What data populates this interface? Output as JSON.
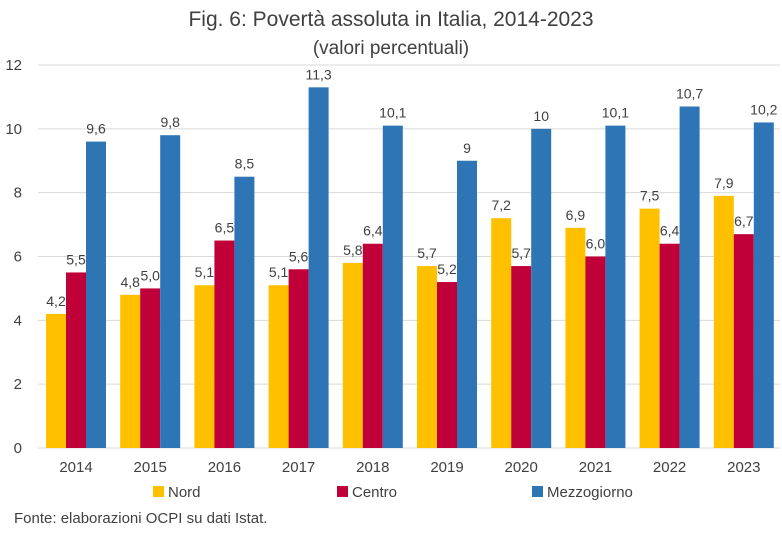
{
  "chart_data": {
    "type": "bar",
    "title": "Fig. 6: Povertà assoluta in Italia, 2014-2023",
    "subtitle": "(valori percentuali)",
    "categories": [
      "2014",
      "2015",
      "2016",
      "2017",
      "2018",
      "2019",
      "2020",
      "2021",
      "2022",
      "2023"
    ],
    "series": [
      {
        "name": "Nord",
        "color": "#FFC000",
        "values": [
          4.2,
          4.8,
          5.1,
          5.1,
          5.8,
          5.7,
          7.2,
          6.9,
          7.5,
          7.9
        ],
        "labels": [
          "4,2",
          "4,8",
          "5,1",
          "5,1",
          "5,8",
          "5,7",
          "7,2",
          "6,9",
          "7,5",
          "7,9"
        ]
      },
      {
        "name": "Centro",
        "color": "#C00039",
        "values": [
          5.5,
          5.0,
          6.5,
          5.6,
          6.4,
          5.2,
          5.7,
          6.0,
          6.4,
          6.7
        ],
        "labels": [
          "5,5",
          "5,0",
          "6,5",
          "5,6",
          "6,4",
          "5,2",
          "5,7",
          "6,0",
          "6,4",
          "6,7"
        ]
      },
      {
        "name": "Mezzogiorno",
        "color": "#2E75B6",
        "values": [
          9.6,
          9.8,
          8.5,
          11.3,
          10.1,
          9.0,
          10.0,
          10.1,
          10.7,
          10.2
        ],
        "labels": [
          "9,6",
          "9,8",
          "8,5",
          "11,3",
          "10,1",
          "9",
          "10",
          "10,1",
          "10,7",
          "10,2"
        ]
      }
    ],
    "ylim": [
      0,
      12
    ],
    "yticks": [
      "0",
      "2",
      "4",
      "6",
      "8",
      "10",
      "12"
    ],
    "grid": true,
    "legend_position": "bottom",
    "source": "Fonte: elaborazioni OCPI su dati Istat."
  }
}
